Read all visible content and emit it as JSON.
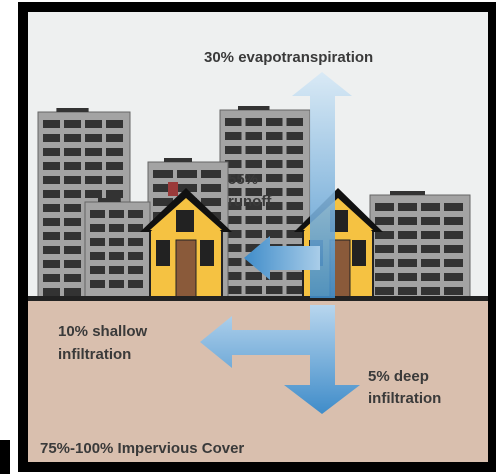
{
  "labels": [
    {
      "lines": [
        "30% evapotranspiration"
      ]
    },
    {
      "lines": [
        "55%",
        "runoff"
      ]
    },
    {
      "lines": [
        "10% shallow",
        "infiltration"
      ]
    },
    {
      "lines": [
        "5% deep",
        "infiltration"
      ]
    },
    {
      "lines": [
        "75%-100% Impervious Cover"
      ]
    }
  ]
}
